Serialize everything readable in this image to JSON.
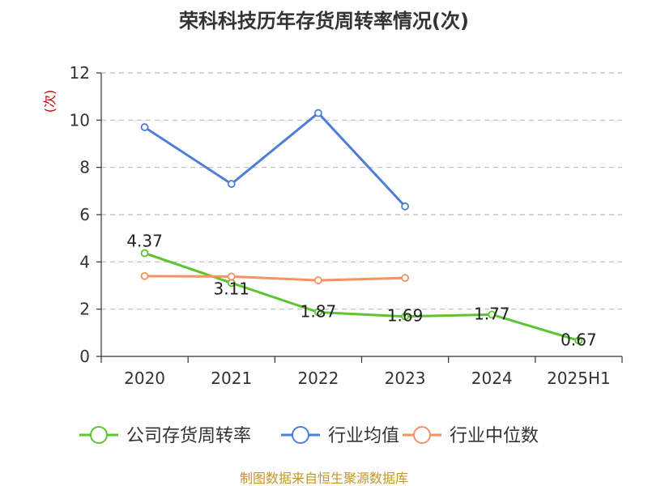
{
  "chart_data": {
    "type": "line",
    "title": "荣科科技历年存货周转率情况(次)",
    "ylabel": "(次)",
    "xlabel": "",
    "ylim": [
      0,
      12
    ],
    "yticks": [
      0,
      2,
      4,
      6,
      8,
      10,
      12
    ],
    "categories": [
      "2020",
      "2021",
      "2022",
      "2023",
      "2024",
      "2025H1"
    ],
    "grid": true,
    "legend_position": "bottom",
    "series": [
      {
        "name": "公司存货周转率",
        "color": "#5dc531",
        "values": [
          4.37,
          3.11,
          1.87,
          1.69,
          1.77,
          0.67
        ],
        "labels": [
          "4.37",
          "3.11",
          "1.87",
          "1.69",
          "1.77",
          "0.67"
        ]
      },
      {
        "name": "行业均值",
        "color": "#4e7fd8",
        "values": [
          9.7,
          7.3,
          10.3,
          6.35,
          null,
          null
        ]
      },
      {
        "name": "行业中位数",
        "color": "#f29362",
        "values": [
          3.4,
          3.38,
          3.22,
          3.32,
          null,
          null
        ]
      }
    ],
    "source": "制图数据来自恒生聚源数据库"
  }
}
